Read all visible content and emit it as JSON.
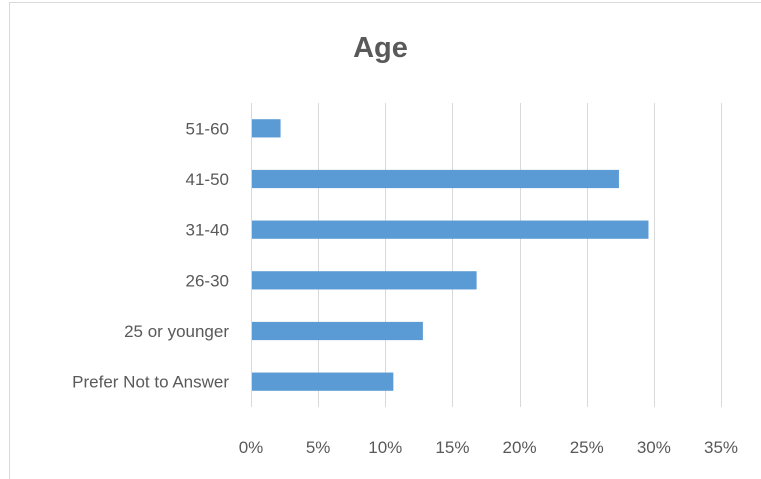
{
  "chart_data": {
    "type": "bar",
    "orientation": "horizontal",
    "title": "Age",
    "xlabel": "",
    "ylabel": "",
    "categories": [
      "51-60",
      "41-50",
      "31-40",
      "26-30",
      "25 or younger",
      "Prefer Not to Answer"
    ],
    "values": [
      2.2,
      27.4,
      29.6,
      16.8,
      12.8,
      10.6
    ],
    "xlim": [
      0,
      35
    ],
    "x_ticks": [
      "0%",
      "5%",
      "10%",
      "15%",
      "20%",
      "25%",
      "30%",
      "35%"
    ],
    "grid": "vertical",
    "legend": "none",
    "bar_color": "#5b9bd5",
    "gridline_color": "#d9d9d9",
    "text_color": "#595959"
  }
}
